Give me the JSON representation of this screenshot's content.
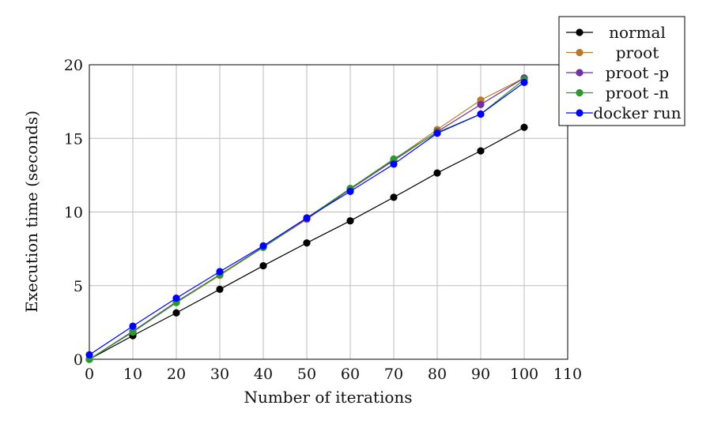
{
  "chart_data": {
    "type": "line",
    "title": "",
    "xlabel": "Number of iterations",
    "ylabel": "Execution time  (seconds)",
    "xlim": [
      0,
      110
    ],
    "ylim": [
      0,
      20
    ],
    "xticks": [
      "0",
      "10",
      "20",
      "30",
      "40",
      "50",
      "60",
      "70",
      "80",
      "90",
      "100",
      "110"
    ],
    "yticks": [
      "0",
      "5",
      "10",
      "15",
      "20"
    ],
    "grid": true,
    "legend_position": "top-right, outside",
    "x": [
      0,
      10,
      20,
      30,
      40,
      50,
      60,
      70,
      80,
      90,
      100
    ],
    "series": [
      {
        "name": "normal",
        "color": "#000000",
        "values": [
          0.0,
          1.6,
          3.15,
          4.75,
          6.35,
          7.9,
          9.4,
          11.0,
          12.65,
          14.15,
          15.75
        ]
      },
      {
        "name": "proot",
        "color": "#b87a2a",
        "values": [
          0.0,
          1.85,
          3.85,
          5.7,
          7.6,
          9.5,
          11.55,
          13.55,
          15.6,
          17.6,
          19.1
        ]
      },
      {
        "name": "proot -p",
        "color": "#7030a0",
        "values": [
          0.0,
          1.9,
          3.9,
          5.75,
          7.65,
          9.55,
          11.55,
          13.5,
          15.45,
          17.3,
          19.1
        ]
      },
      {
        "name": "proot -n",
        "color": "#2a9a2a",
        "values": [
          0.0,
          1.85,
          3.85,
          5.75,
          7.6,
          9.6,
          11.6,
          13.6,
          15.4,
          16.65,
          19.0
        ]
      },
      {
        "name": "docker run",
        "color": "#0000ff",
        "values": [
          0.3,
          2.25,
          4.15,
          5.95,
          7.7,
          9.6,
          11.4,
          13.25,
          15.35,
          16.65,
          18.8
        ]
      }
    ]
  }
}
